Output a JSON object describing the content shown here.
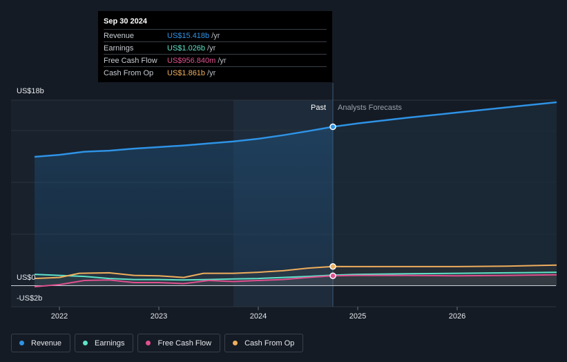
{
  "tooltip": {
    "date": "Sep 30 2024",
    "rows": [
      {
        "label": "Revenue",
        "value": "US$15.418b",
        "unit": "/yr",
        "color": "#2e93e6"
      },
      {
        "label": "Earnings",
        "value": "US$1.026b",
        "unit": "/yr",
        "color": "#5ee3c9"
      },
      {
        "label": "Free Cash Flow",
        "value": "US$956.840m",
        "unit": "/yr",
        "color": "#e0508f"
      },
      {
        "label": "Cash From Op",
        "value": "US$1.861b",
        "unit": "/yr",
        "color": "#efae5d"
      }
    ]
  },
  "labels": {
    "past": "Past",
    "forecast": "Analysts Forecasts"
  },
  "chart_data": {
    "type": "line",
    "ylim": [
      -2,
      18
    ],
    "y_tick_labels": [
      {
        "value": 18,
        "label": "US$18b"
      },
      {
        "value": 0,
        "label": "US$0"
      },
      {
        "value": -2,
        "label": "-US$2b"
      }
    ],
    "x_tick_labels": [
      {
        "value": 2022,
        "label": "2022"
      },
      {
        "value": 2023,
        "label": "2023"
      },
      {
        "value": 2024,
        "label": "2024"
      },
      {
        "value": 2025,
        "label": "2025"
      },
      {
        "value": 2026,
        "label": "2026"
      }
    ],
    "xlim": [
      2021.55,
      2027.0
    ],
    "past_end": 2024.75,
    "highlight_start": 2023.75,
    "series": [
      {
        "name": "Revenue",
        "color": "#2e93e6",
        "points": [
          [
            2021.75,
            12.5
          ],
          [
            2022.0,
            12.7
          ],
          [
            2022.25,
            13.0
          ],
          [
            2022.5,
            13.1
          ],
          [
            2022.75,
            13.3
          ],
          [
            2023.0,
            13.45
          ],
          [
            2023.25,
            13.6
          ],
          [
            2023.5,
            13.8
          ],
          [
            2023.75,
            14.0
          ],
          [
            2024.0,
            14.25
          ],
          [
            2024.25,
            14.6
          ],
          [
            2024.5,
            15.0
          ],
          [
            2024.75,
            15.418
          ],
          [
            2025.0,
            15.75
          ],
          [
            2025.5,
            16.3
          ],
          [
            2026.0,
            16.8
          ],
          [
            2026.5,
            17.3
          ],
          [
            2027.0,
            17.8
          ]
        ]
      },
      {
        "name": "Earnings",
        "color": "#5ee3c9",
        "points": [
          [
            2021.75,
            1.1
          ],
          [
            2022.0,
            1.0
          ],
          [
            2022.25,
            0.9
          ],
          [
            2022.5,
            0.7
          ],
          [
            2022.75,
            0.6
          ],
          [
            2023.0,
            0.6
          ],
          [
            2023.25,
            0.55
          ],
          [
            2023.5,
            0.6
          ],
          [
            2023.75,
            0.65
          ],
          [
            2024.0,
            0.7
          ],
          [
            2024.25,
            0.8
          ],
          [
            2024.5,
            0.9
          ],
          [
            2024.75,
            1.026
          ],
          [
            2025.0,
            1.1
          ],
          [
            2025.5,
            1.15
          ],
          [
            2026.0,
            1.2
          ],
          [
            2026.5,
            1.25
          ],
          [
            2027.0,
            1.3
          ]
        ]
      },
      {
        "name": "Free Cash Flow",
        "color": "#e0508f",
        "points": [
          [
            2021.75,
            -0.1
          ],
          [
            2022.0,
            0.1
          ],
          [
            2022.25,
            0.5
          ],
          [
            2022.5,
            0.55
          ],
          [
            2022.75,
            0.3
          ],
          [
            2023.0,
            0.3
          ],
          [
            2023.25,
            0.2
          ],
          [
            2023.5,
            0.5
          ],
          [
            2023.75,
            0.4
          ],
          [
            2024.0,
            0.5
          ],
          [
            2024.25,
            0.6
          ],
          [
            2024.5,
            0.8
          ],
          [
            2024.75,
            0.957
          ],
          [
            2025.0,
            1.0
          ],
          [
            2025.5,
            1.0
          ],
          [
            2026.0,
            0.95
          ],
          [
            2026.5,
            1.0
          ],
          [
            2027.0,
            1.05
          ]
        ]
      },
      {
        "name": "Cash From Op",
        "color": "#efae5d",
        "points": [
          [
            2021.75,
            0.7
          ],
          [
            2022.0,
            0.8
          ],
          [
            2022.2,
            1.2
          ],
          [
            2022.5,
            1.25
          ],
          [
            2022.75,
            1.0
          ],
          [
            2023.0,
            0.95
          ],
          [
            2023.25,
            0.8
          ],
          [
            2023.45,
            1.2
          ],
          [
            2023.75,
            1.2
          ],
          [
            2024.0,
            1.3
          ],
          [
            2024.25,
            1.45
          ],
          [
            2024.5,
            1.7
          ],
          [
            2024.75,
            1.861
          ],
          [
            2025.0,
            1.85
          ],
          [
            2025.5,
            1.85
          ],
          [
            2026.0,
            1.85
          ],
          [
            2026.5,
            1.9
          ],
          [
            2027.0,
            2.0
          ]
        ]
      }
    ]
  },
  "legend": [
    {
      "label": "Revenue",
      "color": "#2e93e6"
    },
    {
      "label": "Earnings",
      "color": "#5ee3c9"
    },
    {
      "label": "Free Cash Flow",
      "color": "#e0508f"
    },
    {
      "label": "Cash From Op",
      "color": "#efae5d"
    }
  ]
}
